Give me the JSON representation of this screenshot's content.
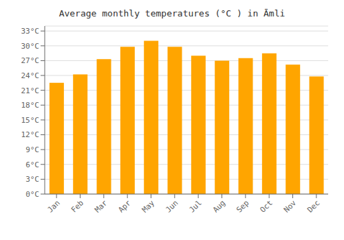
{
  "chart_data": {
    "type": "bar",
    "title": "Average monthly temperatures (°C ) in Āmli",
    "categories": [
      "Jan",
      "Feb",
      "Mar",
      "Apr",
      "May",
      "Jun",
      "Jul",
      "Aug",
      "Sep",
      "Oct",
      "Nov",
      "Dec"
    ],
    "values": [
      22.5,
      24.2,
      27.3,
      29.8,
      31.0,
      29.8,
      28.0,
      27.0,
      27.5,
      28.5,
      26.2,
      23.8
    ],
    "color": "#FFA500",
    "ylim": [
      0,
      34
    ],
    "yticks": [
      {
        "value": 0,
        "label": "0°C"
      },
      {
        "value": 3,
        "label": "3°C"
      },
      {
        "value": 6,
        "label": "6°C"
      },
      {
        "value": 9,
        "label": "9°C"
      },
      {
        "value": 12,
        "label": "12°C"
      },
      {
        "value": 15,
        "label": "15°C"
      },
      {
        "value": 18,
        "label": "18°C"
      },
      {
        "value": 21,
        "label": "21°C"
      },
      {
        "value": 24,
        "label": "24°C"
      },
      {
        "value": 27,
        "label": "27°C"
      },
      {
        "value": 30,
        "label": "30°C"
      },
      {
        "value": 33,
        "label": "33°C"
      }
    ],
    "grid": true
  }
}
